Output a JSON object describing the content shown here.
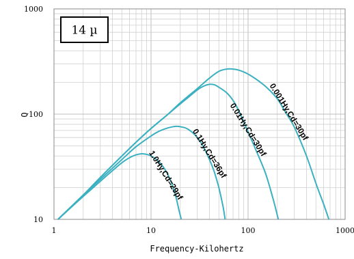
{
  "chart_data": {
    "type": "line",
    "title": "",
    "badge": "14 µ",
    "xlabel": "Frequency-Kilohertz",
    "ylabel": "Q",
    "xscale": "log",
    "yscale": "log",
    "xlim": [
      1,
      1000
    ],
    "ylim": [
      10,
      1000
    ],
    "xticks": [
      {
        "value": 1,
        "label": "1"
      },
      {
        "value": 10,
        "label": "10"
      },
      {
        "value": 100,
        "label": "100"
      },
      {
        "value": 1000,
        "label": "1000"
      }
    ],
    "yticks": [
      {
        "value": 10,
        "label": "10"
      },
      {
        "value": 100,
        "label": "100"
      },
      {
        "value": 1000,
        "label": "1000"
      }
    ],
    "grid": true,
    "line_color": "#3ab0c0",
    "series": [
      {
        "name": "1.0Hy,Cd=29pf",
        "points": [
          [
            1.1,
            10
          ],
          [
            1.5,
            13
          ],
          [
            2,
            16.5
          ],
          [
            3,
            23
          ],
          [
            4,
            29
          ],
          [
            5,
            34.5
          ],
          [
            6,
            38.5
          ],
          [
            7,
            41
          ],
          [
            8,
            42
          ],
          [
            9,
            41.5
          ],
          [
            10,
            40
          ],
          [
            12,
            35.5
          ],
          [
            14,
            29.5
          ],
          [
            16,
            23
          ],
          [
            18,
            16.5
          ],
          [
            19.5,
            12
          ],
          [
            20.5,
            10
          ]
        ]
      },
      {
        "name": "0.1Hy,Cd=36pf",
        "points": [
          [
            1.1,
            10
          ],
          [
            2,
            17
          ],
          [
            3,
            24
          ],
          [
            5,
            37
          ],
          [
            7,
            49
          ],
          [
            10,
            62
          ],
          [
            12,
            68.5
          ],
          [
            15,
            74
          ],
          [
            18,
            76.5
          ],
          [
            20,
            76
          ],
          [
            24,
            72
          ],
          [
            30,
            60
          ],
          [
            35,
            48
          ],
          [
            40,
            37
          ],
          [
            45,
            28
          ],
          [
            50,
            20
          ],
          [
            55,
            13.5
          ],
          [
            58,
            10
          ]
        ]
      },
      {
        "name": "0.01Hy,Cd=30pf",
        "points": [
          [
            1.1,
            10
          ],
          [
            2,
            17
          ],
          [
            3,
            25
          ],
          [
            5,
            40
          ],
          [
            7,
            54
          ],
          [
            10,
            73
          ],
          [
            15,
            100
          ],
          [
            20,
            125
          ],
          [
            25,
            148
          ],
          [
            30,
            170
          ],
          [
            35,
            185
          ],
          [
            40,
            192
          ],
          [
            45,
            190
          ],
          [
            50,
            180
          ],
          [
            60,
            160
          ],
          [
            70,
            135
          ],
          [
            80,
            108
          ],
          [
            100,
            68
          ],
          [
            120,
            46
          ],
          [
            150,
            28
          ],
          [
            180,
            16
          ],
          [
            205,
            10
          ]
        ]
      },
      {
        "name": "0.001Hy,Cd=30pf",
        "points": [
          [
            1.1,
            10
          ],
          [
            2,
            17
          ],
          [
            3,
            25
          ],
          [
            5,
            40
          ],
          [
            7,
            54
          ],
          [
            10,
            73
          ],
          [
            15,
            100
          ],
          [
            20,
            128
          ],
          [
            30,
            175
          ],
          [
            40,
            220
          ],
          [
            50,
            255
          ],
          [
            60,
            268
          ],
          [
            70,
            268
          ],
          [
            80,
            262
          ],
          [
            100,
            240
          ],
          [
            130,
            205
          ],
          [
            160,
            175
          ],
          [
            200,
            140
          ],
          [
            250,
            100
          ],
          [
            300,
            75
          ],
          [
            400,
            40
          ],
          [
            500,
            22
          ],
          [
            600,
            14
          ],
          [
            680,
            10
          ]
        ]
      }
    ],
    "labels": [
      {
        "series": 0,
        "text": "1.0Hy,Cd=29pf",
        "x": 13.5,
        "y": 25.5,
        "angle": 58
      },
      {
        "series": 1,
        "text": "0.1Hy,Cd=36pf",
        "x": 38,
        "y": 41,
        "angle": 58
      },
      {
        "series": 2,
        "text": "0.01Hy,Cd=30pf",
        "x": 95,
        "y": 69,
        "angle": 58
      },
      {
        "series": 3,
        "text": "0.001Hy,Cd=30pf",
        "x": 250,
        "y": 102,
        "angle": 58
      }
    ]
  }
}
